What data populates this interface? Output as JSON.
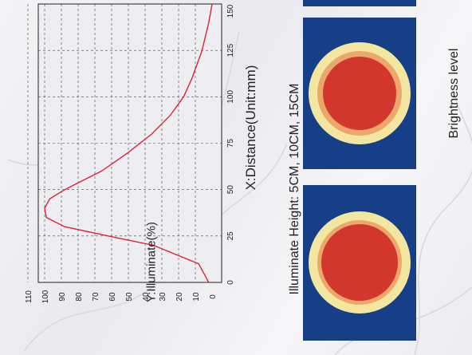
{
  "chart_data": [
    {
      "type": "line",
      "orientation": "rotated -90deg",
      "xlabel": "X:Distance(Unit:mm)",
      "ylabel": "Y:Illuminate(%)",
      "xlim": [
        0,
        150
      ],
      "ylim": [
        0,
        110
      ],
      "x_ticks": [
        "0",
        "25",
        "50",
        "75",
        "100",
        "125",
        "150"
      ],
      "y_ticks": [
        "0",
        "10",
        "20",
        "30",
        "40",
        "50",
        "60",
        "70",
        "80",
        "90",
        "100",
        "110"
      ],
      "grid": true,
      "series": [
        {
          "color": "#e0203a",
          "x": [
            0,
            10,
            20,
            25,
            30,
            35,
            40,
            45,
            50,
            55,
            60,
            70,
            80,
            90,
            100,
            110,
            125,
            140,
            150
          ],
          "y": [
            2,
            8,
            35,
            62,
            88,
            99,
            100,
            97,
            88,
            77,
            66,
            50,
            36,
            25,
            17,
            12,
            6,
            2,
            0
          ]
        }
      ]
    }
  ],
  "labels": {
    "illuminate_height": "Illuminate Height: 5CM, 10CM, 15CM",
    "brightness_level": "Brightness level"
  },
  "colors": {
    "panel": "#173f87",
    "ring_outer": "#f3e6a0",
    "ring_middle": "#eba86a",
    "core": "#d2372e",
    "curve": "#e0203a"
  }
}
